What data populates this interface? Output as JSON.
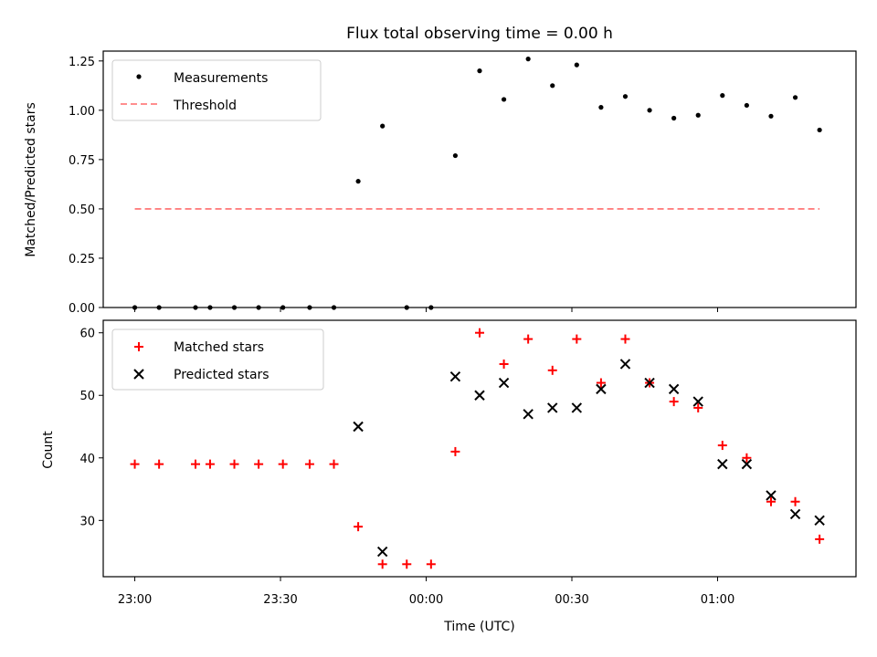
{
  "chart_data": [
    {
      "type": "scatter",
      "title": "Flux total observing time = 0.00 h",
      "xlabel": "",
      "ylabel": "Matched/Predicted stars",
      "ylim": [
        0,
        1.3
      ],
      "yticks": [
        "0.00",
        "0.25",
        "0.50",
        "0.75",
        "1.00",
        "1.25"
      ],
      "ytick_values": [
        0,
        0.25,
        0.5,
        0.75,
        1.0,
        1.25
      ],
      "legend_position": "top-left",
      "series": [
        {
          "name": "Measurements",
          "marker": "dot",
          "color": "#000000",
          "x": [
            0,
            5,
            12.5,
            15.5,
            20.5,
            25.5,
            30.5,
            36,
            41,
            46,
            51,
            56,
            61,
            66,
            71,
            76,
            81,
            86,
            91,
            96,
            101,
            106,
            111,
            116,
            121,
            126,
            131,
            136
          ],
          "y": [
            0,
            0,
            0,
            0,
            0,
            0,
            0,
            0,
            0,
            0.64,
            0.92,
            0,
            0,
            0.77,
            1.2,
            1.055,
            1.26,
            1.125,
            1.23,
            1.015,
            1.07,
            1.0,
            0.96,
            0.975,
            1.075,
            1.025,
            0.97,
            1.065
          ]
        },
        {
          "name": "Threshold",
          "marker": "dashed-line",
          "color": "#ff7f7f",
          "x": [
            0,
            141
          ],
          "y": [
            0.5,
            0.5
          ]
        }
      ],
      "extra_points": {
        "x": [
          141
        ],
        "y": [
          0.9
        ]
      }
    },
    {
      "type": "scatter",
      "xlabel": "Time (UTC)",
      "ylabel": "Count",
      "xlim": [
        -6.5,
        148.5
      ],
      "ylim": [
        21,
        62
      ],
      "xticks": [
        "23:00",
        "23:30",
        "00:00",
        "00:30",
        "01:00"
      ],
      "xtick_values": [
        0,
        30,
        60,
        90,
        120
      ],
      "yticks": [
        "30",
        "40",
        "50",
        "60"
      ],
      "ytick_values": [
        30,
        40,
        50,
        60
      ],
      "legend_position": "top-left",
      "series": [
        {
          "name": "Matched stars",
          "marker": "plus",
          "color": "#ff0000",
          "x": [
            0,
            5,
            12.5,
            15.5,
            20.5,
            25.5,
            30.5,
            36,
            41,
            46,
            51,
            56,
            61,
            66,
            71,
            76,
            81,
            86,
            91,
            96,
            101,
            106,
            111,
            116,
            121,
            126,
            131,
            136,
            141
          ],
          "y": [
            39,
            39,
            39,
            39,
            39,
            39,
            39,
            39,
            39,
            29,
            23,
            23,
            23,
            41,
            60,
            55,
            59,
            54,
            59,
            52,
            59,
            52,
            49,
            48,
            42,
            40,
            33,
            33,
            27
          ]
        },
        {
          "name": "Predicted stars",
          "marker": "x",
          "color": "#000000",
          "x": [
            46,
            51,
            66,
            71,
            76,
            81,
            86,
            91,
            96,
            101,
            106,
            111,
            116,
            121,
            126,
            131,
            136,
            141
          ],
          "y": [
            45,
            25,
            53,
            50,
            52,
            47,
            48,
            48,
            51,
            55,
            52,
            51,
            49,
            39,
            39,
            34,
            31,
            30
          ]
        }
      ]
    }
  ]
}
